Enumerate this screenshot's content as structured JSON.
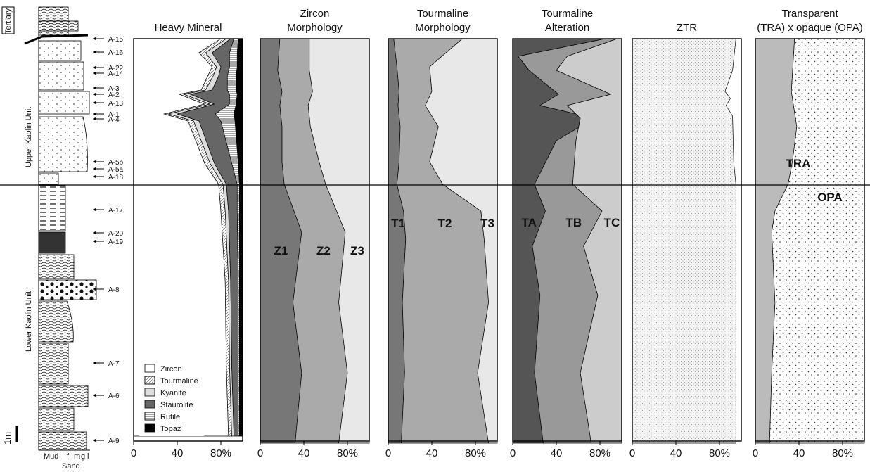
{
  "chart_data": {
    "type": "area",
    "boundary_label": "",
    "column": {
      "unit_labels": [
        "Tertiary",
        "Upper Kaolin Unit",
        "Lower Kaolin Unit"
      ],
      "x_labels": [
        "Mud",
        "f",
        "m",
        "g",
        "l"
      ],
      "x_caption": "Sand",
      "scale_label": "1m",
      "samples": [
        "A-15",
        "A-16",
        "A-22",
        "A-14",
        "A-3",
        "A-2",
        "A-13",
        "A-1",
        "A-4",
        "A-5b",
        "A-5a",
        "A-18",
        "A-17",
        "A-20",
        "A-19",
        "A-8",
        "A-7",
        "A-6",
        "A-9"
      ],
      "sample_depth": [
        55,
        74,
        96,
        104,
        125,
        134,
        146,
        162,
        169,
        230,
        240,
        251,
        298,
        331,
        343,
        411,
        516,
        562,
        626
      ]
    },
    "x_ticks": [
      "0",
      "40",
      "80%"
    ],
    "xlim": [
      0,
      100
    ],
    "panels": [
      {
        "title": "Heavy Mineral",
        "depth": [
          55,
          75,
          95,
          108,
          128,
          134,
          148,
          162,
          172,
          232,
          262,
          300,
          400,
          520,
          620
        ],
        "bounds": [
          [
            80,
            60,
            72,
            68,
            62,
            42,
            65,
            28,
            50,
            65,
            78,
            80,
            84,
            85,
            87
          ],
          [
            85,
            66,
            76,
            73,
            66,
            46,
            70,
            32,
            55,
            70,
            82,
            84,
            87,
            88,
            90
          ],
          [
            89,
            72,
            80,
            78,
            72,
            52,
            74,
            40,
            60,
            74,
            85,
            87,
            89,
            90,
            92
          ],
          [
            92,
            88,
            88,
            86,
            86,
            88,
            88,
            75,
            80,
            90,
            95,
            95,
            96,
            96,
            96
          ],
          [
            96,
            95,
            95,
            94,
            94,
            95,
            94,
            92,
            93,
            96,
            97,
            97,
            97,
            97,
            97
          ]
        ],
        "series": [
          {
            "name": "Zircon",
            "color": "#ffffff",
            "pattern": "none"
          },
          {
            "name": "Tourmaline",
            "color": "#ffffff",
            "pattern": "diag"
          },
          {
            "name": "Kyanite",
            "color": "#dddddd",
            "pattern": "none"
          },
          {
            "name": "Staurolite",
            "color": "#666666",
            "pattern": "none"
          },
          {
            "name": "Rutile",
            "color": "#ffffff",
            "pattern": "hlines"
          },
          {
            "name": "Topaz",
            "color": "#000000",
            "pattern": "none"
          }
        ]
      },
      {
        "title": "Zircon\nMorphology",
        "depth": [
          55,
          100,
          130,
          150,
          180,
          230,
          262,
          330,
          430,
          530,
          630
        ],
        "bounds": [
          [
            18,
            16,
            20,
            18,
            20,
            20,
            22,
            38,
            30,
            38,
            32
          ],
          [
            45,
            45,
            48,
            44,
            46,
            54,
            60,
            78,
            72,
            80,
            72
          ]
        ],
        "series": [
          {
            "name": "Z1",
            "color": "#777777"
          },
          {
            "name": "Z2",
            "color": "#aaaaaa"
          },
          {
            "name": "Z3",
            "color": "#e8e8e8"
          }
        ],
        "labels": [
          "Z1",
          "Z2",
          "Z3"
        ],
        "label_depth": 362
      },
      {
        "title": "Tourmaline\nMorphology",
        "depth": [
          55,
          95,
          130,
          150,
          180,
          230,
          262,
          300,
          340,
          430,
          530,
          630
        ],
        "bounds": [
          [
            5,
            8,
            10,
            9,
            11,
            10,
            8,
            14,
            16,
            13,
            15,
            12
          ],
          [
            68,
            38,
            40,
            34,
            46,
            38,
            50,
            85,
            88,
            92,
            82,
            92
          ]
        ],
        "series": [
          {
            "name": "T1",
            "color": "#777777"
          },
          {
            "name": "T2",
            "color": "#aaaaaa"
          },
          {
            "name": "T3",
            "color": "#e8e8e8"
          }
        ],
        "labels": [
          "T1",
          "T2",
          "T3"
        ],
        "label_depth": 323
      },
      {
        "title": "Tourmaline\nAlteration",
        "depth": [
          55,
          80,
          100,
          134,
          150,
          168,
          200,
          262,
          300,
          350,
          420,
          530,
          630
        ],
        "bounds": [
          [
            85,
            5,
            15,
            42,
            25,
            75,
            40,
            20,
            30,
            18,
            25,
            20,
            28
          ],
          [
            96,
            50,
            40,
            90,
            50,
            62,
            58,
            55,
            82,
            65,
            78,
            62,
            72
          ]
        ],
        "series": [
          {
            "name": "TA",
            "color": "#555555"
          },
          {
            "name": "TB",
            "color": "#999999"
          },
          {
            "name": "TC",
            "color": "#cccccc"
          }
        ],
        "labels": [
          "TA",
          "TB",
          "TC"
        ],
        "label_depth": 322
      },
      {
        "title": "ZTR",
        "depth": [
          55,
          100,
          130,
          140,
          150,
          165,
          230,
          262,
          630
        ],
        "bounds": [
          [
            95,
            92,
            85,
            90,
            86,
            92,
            93,
            95,
            95
          ]
        ],
        "series": [
          {
            "name": "ZTR",
            "color": "#f4f4f4"
          }
        ]
      },
      {
        "title": "Transparent\n(TRA) x opaque (OPA)",
        "depth": [
          55,
          130,
          180,
          230,
          262,
          300,
          330,
          430,
          530,
          630
        ],
        "bounds": [
          [
            36,
            33,
            38,
            34,
            30,
            18,
            15,
            18,
            15,
            13
          ]
        ],
        "series": [
          {
            "name": "TRA",
            "color": "#bbbbbb"
          },
          {
            "name": "OPA",
            "color": "#ffffff",
            "pattern": "dots"
          }
        ],
        "labels": [
          "TRA",
          "OPA"
        ],
        "label_pos": [
          [
            1135,
            238
          ],
          [
            1180,
            286
          ]
        ]
      }
    ]
  }
}
